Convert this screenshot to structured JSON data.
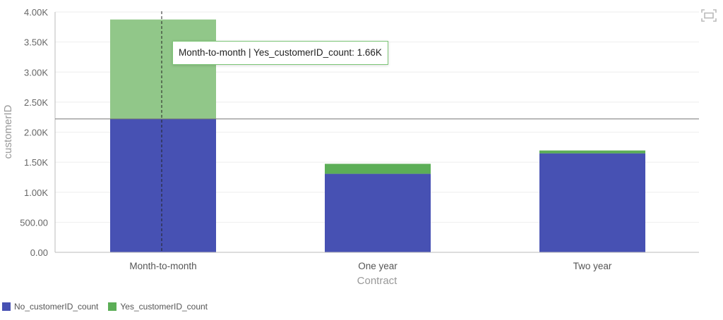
{
  "chart_data": {
    "type": "bar",
    "stacked": true,
    "categories": [
      "Month-to-month",
      "One year",
      "Two year"
    ],
    "series": [
      {
        "name": "No_customerID_count",
        "values": [
          2220,
          1307,
          1647
        ],
        "color": "#4751b3"
      },
      {
        "name": "Yes_customerID_count",
        "values": [
          1655,
          166,
          48
        ],
        "color": "#5cae57"
      }
    ],
    "highlight_color": "#91c789",
    "xlabel": "Contract",
    "ylabel": "customerID",
    "ylim": [
      0,
      4000
    ],
    "yticks": [
      0,
      500,
      1000,
      1500,
      2000,
      2500,
      3000,
      3500,
      4000
    ],
    "ytick_labels": [
      "0.00",
      "500.00",
      "1.00K",
      "1.50K",
      "2.00K",
      "2.50K",
      "3.00K",
      "3.50K",
      "4.00K"
    ],
    "grid": true,
    "legend_position": "bottom-left",
    "crosshair_value": 2220,
    "hovered_category": "Month-to-month"
  },
  "tooltip": {
    "text": "Month-to-month | Yes_customerID_count: 1.66K"
  },
  "toolbar": {
    "expand_icon": "expand-icon"
  }
}
